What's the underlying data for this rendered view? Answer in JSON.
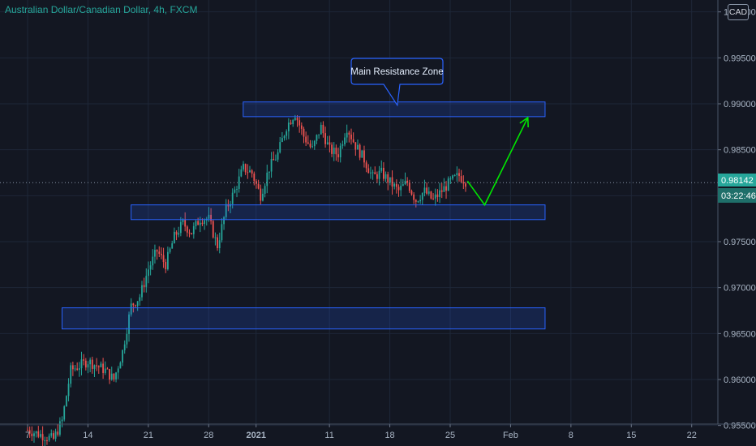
{
  "header": {
    "symbol_title": "Australian Dollar/Canadian Dollar, 4h, FXCM",
    "currency_badge": "CAD"
  },
  "price_axis": {
    "tick_labels": [
      "0.95500",
      "0.96000",
      "0.96500",
      "0.97000",
      "0.97500",
      "0.98000",
      "0.98500",
      "0.99000",
      "0.99500",
      "1.00000"
    ],
    "last_price_label": "0.98142",
    "countdown_label": "03:22:46",
    "last_price_color": "#26a69a"
  },
  "time_axis": {
    "tick_labels": [
      "7",
      "14",
      "21",
      "28",
      "2021",
      "11",
      "18",
      "25",
      "Feb",
      "8",
      "15",
      "22"
    ]
  },
  "annotations": {
    "callout_text": "Main Resistance Zone",
    "zone_color": "#2962ff",
    "arrow_color": "#00e600"
  },
  "chart_data": {
    "type": "candlestick",
    "title": "Australian Dollar/Canadian Dollar, 4h, FXCM",
    "ylim": [
      0.955,
      1.0
    ],
    "grid": true,
    "x_tick_labels": [
      "7",
      "14",
      "21",
      "28",
      "2021",
      "11",
      "18",
      "25",
      "Feb",
      "8",
      "15",
      "22"
    ],
    "last_price": 0.98142,
    "series": [
      {
        "name": "AUDCAD 4h",
        "approx_close_path": [
          [
            "Dec 7",
            0.9545
          ],
          [
            "Dec 10",
            0.9535
          ],
          [
            "Dec 11",
            0.9555
          ],
          [
            "Dec 12",
            0.961
          ],
          [
            "Dec 14",
            0.962
          ],
          [
            "Dec 16",
            0.961
          ],
          [
            "Dec 17",
            0.96
          ],
          [
            "Dec 18",
            0.963
          ],
          [
            "Dec 19",
            0.968
          ],
          [
            "Dec 20",
            0.969
          ],
          [
            "Dec 21",
            0.972
          ],
          [
            "Dec 22",
            0.974
          ],
          [
            "Dec 23",
            0.9725
          ],
          [
            "Dec 24",
            0.9755
          ],
          [
            "Dec 25",
            0.977
          ],
          [
            "Dec 26",
            0.976
          ],
          [
            "Dec 27",
            0.9775
          ],
          [
            "Dec 28",
            0.9775
          ],
          [
            "Dec 29",
            0.9745
          ],
          [
            "Dec 30",
            0.9785
          ],
          [
            "Dec 31",
            0.9805
          ],
          [
            "Jan 1",
            0.983
          ],
          [
            "Jan 2",
            0.9825
          ],
          [
            "Jan 3",
            0.98
          ],
          [
            "Jan 4",
            0.983
          ],
          [
            "Jan 5",
            0.9845
          ],
          [
            "Jan 6",
            0.9875
          ],
          [
            "Jan 7",
            0.989
          ],
          [
            "Jan 8",
            0.9865
          ],
          [
            "Jan 9",
            0.985
          ],
          [
            "Jan 10",
            0.9875
          ],
          [
            "Jan 11",
            0.985
          ],
          [
            "Jan 12",
            0.9845
          ],
          [
            "Jan 13",
            0.9875
          ],
          [
            "Jan 14",
            0.9855
          ],
          [
            "Jan 15",
            0.984
          ],
          [
            "Jan 16",
            0.982
          ],
          [
            "Jan 17",
            0.9825
          ],
          [
            "Jan 18",
            0.9815
          ],
          [
            "Jan 19",
            0.9805
          ],
          [
            "Jan 20",
            0.9815
          ],
          [
            "Jan 21",
            0.9795
          ],
          [
            "Jan 22",
            0.9805
          ],
          [
            "Jan 23",
            0.9795
          ],
          [
            "Jan 24",
            0.9805
          ],
          [
            "Jan 25",
            0.9815
          ],
          [
            "Jan 26",
            0.9822
          ],
          [
            "Jan 27",
            0.9814
          ]
        ]
      }
    ],
    "zones": [
      {
        "label": "Main Resistance Zone",
        "y_low": 0.9886,
        "y_high": 0.9902,
        "x_start": "Jan 1",
        "x_end": "Feb 5"
      },
      {
        "y_low": 0.9774,
        "y_high": 0.979,
        "x_start": "Dec 19",
        "x_end": "Feb 5"
      },
      {
        "y_low": 0.9655,
        "y_high": 0.9678,
        "x_start": "Dec 11",
        "x_end": "Feb 5"
      }
    ],
    "projection": [
      [
        "Jan 27",
        0.9816
      ],
      [
        "Jan 29",
        0.979
      ],
      [
        "Feb 3",
        0.9885
      ]
    ]
  }
}
